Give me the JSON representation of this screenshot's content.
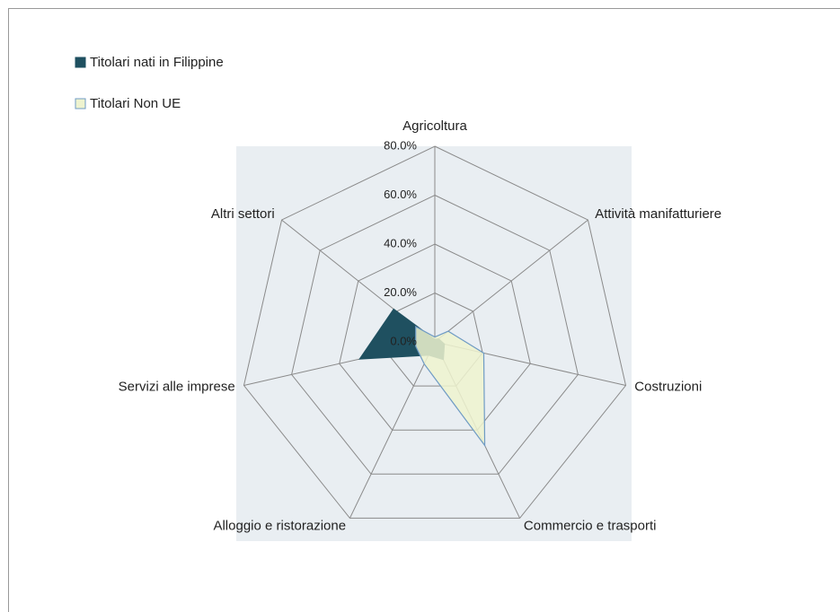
{
  "chart_data": {
    "type": "radar",
    "categories": [
      "Agricoltura",
      "Attività manifatturiere",
      "Costruzioni",
      "Commercio e trasporti",
      "Alloggio e ristorazione",
      "Servizi alle imprese",
      "Altri settori"
    ],
    "series": [
      {
        "name": "Titolari nati in Filippine",
        "color": "#1f5060",
        "values": [
          1,
          2,
          4,
          8,
          6,
          31.5,
          21.5
        ]
      },
      {
        "name": "Titolari Non UE",
        "color": "#eef3cf",
        "values": [
          2,
          7,
          20.5,
          47,
          10,
          8,
          10
        ]
      }
    ],
    "ylim": [
      0,
      80
    ],
    "yticks": [
      {
        "value": 0,
        "label": "0.0%"
      },
      {
        "value": 20,
        "label": "20.0%"
      },
      {
        "value": 40,
        "label": "40.0%"
      },
      {
        "value": 60,
        "label": "60.0%"
      },
      {
        "value": 80,
        "label": "80.0%"
      }
    ],
    "grid": true,
    "legend": "top-left"
  }
}
